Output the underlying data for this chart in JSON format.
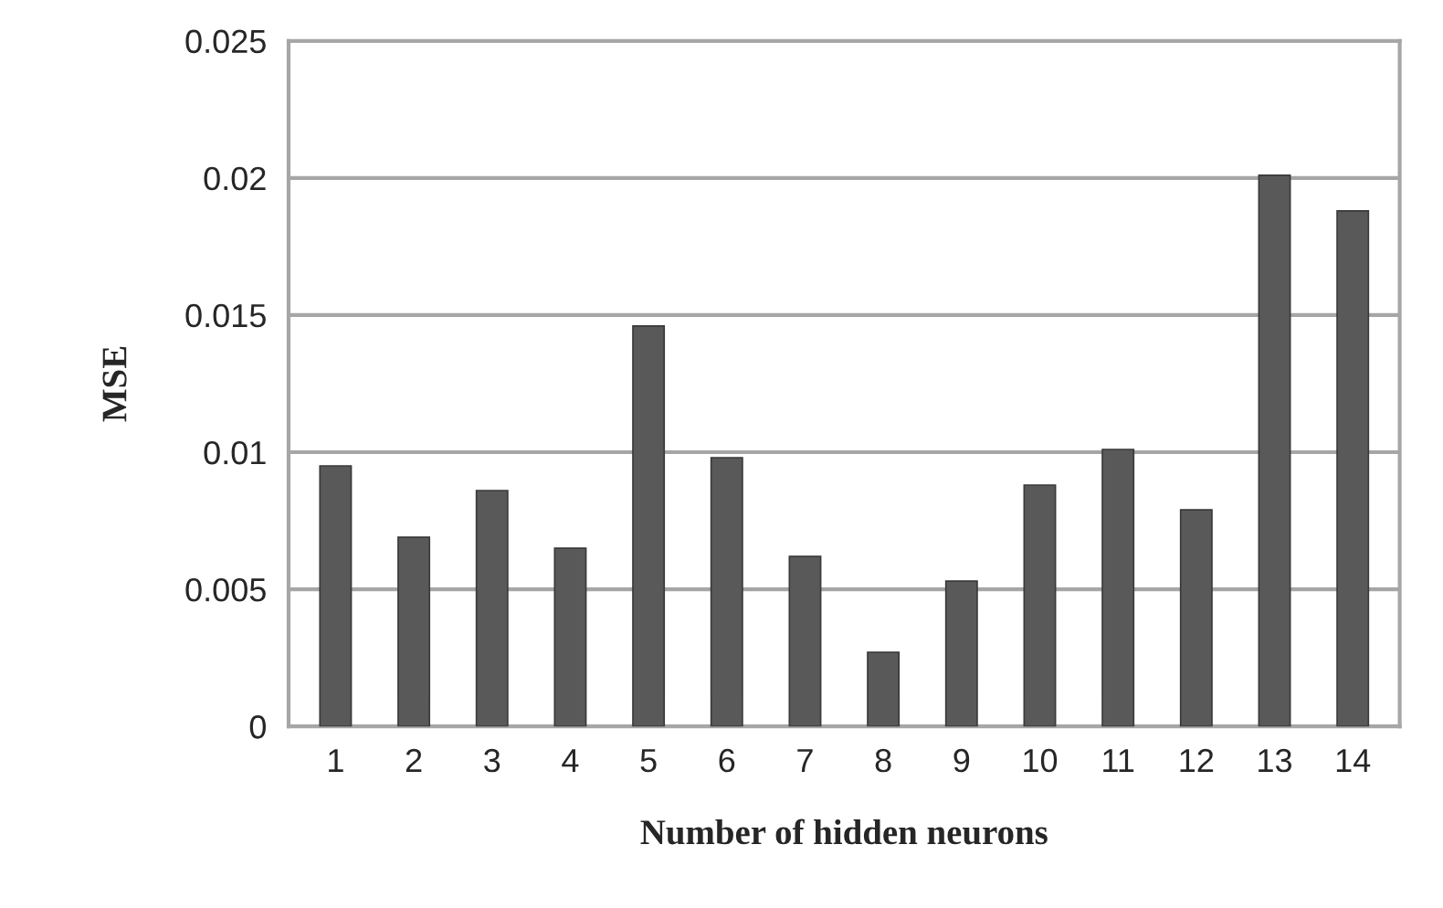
{
  "chart_data": {
    "type": "bar",
    "xlabel": "Number of hidden neurons",
    "ylabel": "MSE",
    "categories": [
      "1",
      "2",
      "3",
      "4",
      "5",
      "6",
      "7",
      "8",
      "9",
      "10",
      "11",
      "12",
      "13",
      "14"
    ],
    "values": [
      0.0095,
      0.0069,
      0.0086,
      0.0065,
      0.0146,
      0.0098,
      0.0062,
      0.0027,
      0.0053,
      0.0088,
      0.0101,
      0.0079,
      0.0201,
      0.0188
    ],
    "color": "#595959",
    "ylim": [
      0,
      0.025
    ],
    "yticks": [
      0,
      0.005,
      0.01,
      0.015,
      0.02,
      0.025
    ],
    "grid": "y"
  }
}
